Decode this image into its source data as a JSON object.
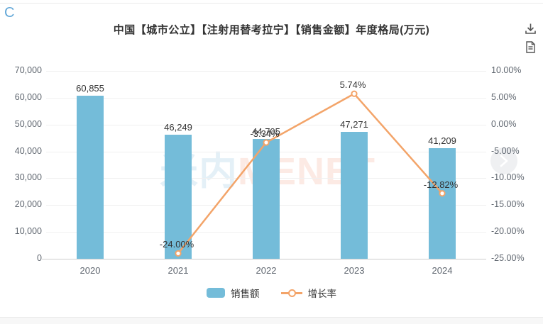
{
  "page": {
    "corner_text": "C",
    "watermark": {
      "cn": "米内",
      "en": "MENET"
    }
  },
  "chart_data": {
    "type": "bar+line",
    "title": "中国【城市公立】【注射用替考拉宁】【销售金额】年度格局(万元)",
    "categories": [
      "2020",
      "2021",
      "2022",
      "2023",
      "2024"
    ],
    "series": [
      {
        "name": "销售额",
        "type": "bar",
        "axis": "left",
        "values": [
          60855,
          46249,
          44705,
          47271,
          41209
        ],
        "labels": [
          "60,855",
          "46,249",
          "44,705",
          "47,271",
          "41,209"
        ],
        "color": "#74bcd9"
      },
      {
        "name": "增长率",
        "type": "line",
        "axis": "right",
        "values": [
          null,
          -24.0,
          -3.34,
          5.74,
          -12.82
        ],
        "labels": [
          "",
          "-24.00%",
          "-3.34%",
          "5.74%",
          "-12.82%"
        ],
        "color": "#f3a469"
      }
    ],
    "left_axis": {
      "min": 0,
      "max": 70000,
      "step": 10000,
      "tick_labels": [
        "70,000",
        "60,000",
        "50,000",
        "40,000",
        "30,000",
        "20,000",
        "10,000",
        "0"
      ]
    },
    "right_axis": {
      "min": -25,
      "max": 10,
      "step": 5,
      "tick_labels": [
        "10.00%",
        "5.00%",
        "0.00%",
        "-5.00%",
        "-10.00%",
        "-15.00%",
        "-20.00%",
        "-25.00%"
      ]
    },
    "grid": true,
    "legend_position": "bottom"
  }
}
